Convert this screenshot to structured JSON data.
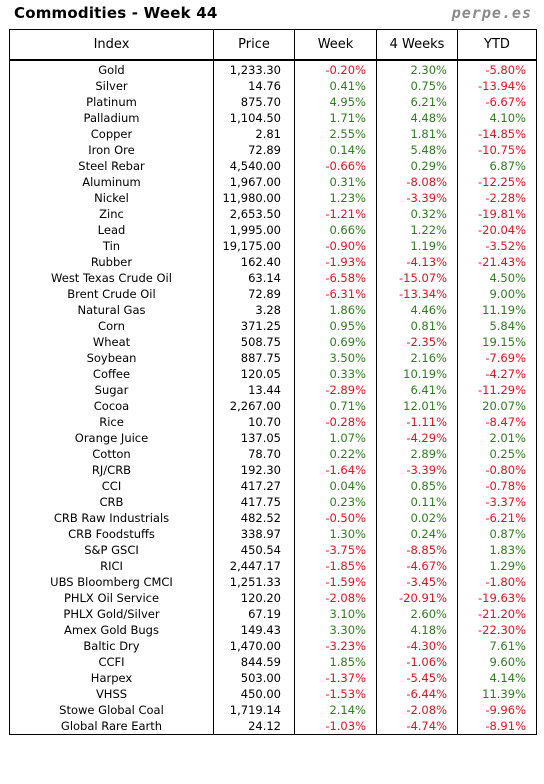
{
  "header": {
    "title": "Commodities - Week 44",
    "brand": "perpe.es"
  },
  "columns": [
    "Index",
    "Price",
    "Week",
    "4 Weeks",
    "YTD"
  ],
  "colors": {
    "positive": "#2e7d1e",
    "negative": "#e0141e"
  },
  "rows": [
    {
      "index": "Gold",
      "price": "1,233.30",
      "week": "-0.20%",
      "four_weeks": "2.30%",
      "ytd": "-5.80%"
    },
    {
      "index": "Silver",
      "price": "14.76",
      "week": "0.41%",
      "four_weeks": "0.75%",
      "ytd": "-13.94%"
    },
    {
      "index": "Platinum",
      "price": "875.70",
      "week": "4.95%",
      "four_weeks": "6.21%",
      "ytd": "-6.67%"
    },
    {
      "index": "Palladium",
      "price": "1,104.50",
      "week": "1.71%",
      "four_weeks": "4.48%",
      "ytd": "4.10%"
    },
    {
      "index": "Copper",
      "price": "2.81",
      "week": "2.55%",
      "four_weeks": "1.81%",
      "ytd": "-14.85%"
    },
    {
      "index": "Iron Ore",
      "price": "72.89",
      "week": "0.14%",
      "four_weeks": "5.48%",
      "ytd": "-10.75%"
    },
    {
      "index": "Steel Rebar",
      "price": "4,540.00",
      "week": "-0.66%",
      "four_weeks": "0.29%",
      "ytd": "6.87%"
    },
    {
      "index": "Aluminum",
      "price": "1,967.00",
      "week": "0.31%",
      "four_weeks": "-8.08%",
      "ytd": "-12.25%"
    },
    {
      "index": "Nickel",
      "price": "11,980.00",
      "week": "1.23%",
      "four_weeks": "-3.39%",
      "ytd": "-2.28%"
    },
    {
      "index": "Zinc",
      "price": "2,653.50",
      "week": "-1.21%",
      "four_weeks": "0.32%",
      "ytd": "-19.81%"
    },
    {
      "index": "Lead",
      "price": "1,995.00",
      "week": "0.66%",
      "four_weeks": "1.22%",
      "ytd": "-20.04%"
    },
    {
      "index": "Tin",
      "price": "19,175.00",
      "week": "-0.90%",
      "four_weeks": "1.19%",
      "ytd": "-3.52%"
    },
    {
      "index": "Rubber",
      "price": "162.40",
      "week": "-1.93%",
      "four_weeks": "-4.13%",
      "ytd": "-21.43%"
    },
    {
      "index": "West Texas Crude Oil",
      "price": "63.14",
      "week": "-6.58%",
      "four_weeks": "-15.07%",
      "ytd": "4.50%"
    },
    {
      "index": "Brent Crude Oil",
      "price": "72.89",
      "week": "-6.31%",
      "four_weeks": "-13.34%",
      "ytd": "9.00%"
    },
    {
      "index": "Natural Gas",
      "price": "3.28",
      "week": "1.86%",
      "four_weeks": "4.46%",
      "ytd": "11.19%"
    },
    {
      "index": "Corn",
      "price": "371.25",
      "week": "0.95%",
      "four_weeks": "0.81%",
      "ytd": "5.84%"
    },
    {
      "index": "Wheat",
      "price": "508.75",
      "week": "0.69%",
      "four_weeks": "-2.35%",
      "ytd": "19.15%"
    },
    {
      "index": "Soybean",
      "price": "887.75",
      "week": "3.50%",
      "four_weeks": "2.16%",
      "ytd": "-7.69%"
    },
    {
      "index": "Coffee",
      "price": "120.05",
      "week": "0.33%",
      "four_weeks": "10.19%",
      "ytd": "-4.27%"
    },
    {
      "index": "Sugar",
      "price": "13.44",
      "week": "-2.89%",
      "four_weeks": "6.41%",
      "ytd": "-11.29%"
    },
    {
      "index": "Cocoa",
      "price": "2,267.00",
      "week": "0.71%",
      "four_weeks": "12.01%",
      "ytd": "20.07%"
    },
    {
      "index": "Rice",
      "price": "10.70",
      "week": "-0.28%",
      "four_weeks": "-1.11%",
      "ytd": "-8.47%"
    },
    {
      "index": "Orange Juice",
      "price": "137.05",
      "week": "1.07%",
      "four_weeks": "-4.29%",
      "ytd": "2.01%"
    },
    {
      "index": "Cotton",
      "price": "78.70",
      "week": "0.22%",
      "four_weeks": "2.89%",
      "ytd": "0.25%"
    },
    {
      "index": "RJ/CRB",
      "price": "192.30",
      "week": "-1.64%",
      "four_weeks": "-3.39%",
      "ytd": "-0.80%"
    },
    {
      "index": "CCI",
      "price": "417.27",
      "week": "0.04%",
      "four_weeks": "0.85%",
      "ytd": "-0.78%"
    },
    {
      "index": "CRB",
      "price": "417.75",
      "week": "0.23%",
      "four_weeks": "0.11%",
      "ytd": "-3.37%"
    },
    {
      "index": "CRB Raw Industrials",
      "price": "482.52",
      "week": "-0.50%",
      "four_weeks": "0.02%",
      "ytd": "-6.21%"
    },
    {
      "index": "CRB Foodstuffs",
      "price": "338.97",
      "week": "1.30%",
      "four_weeks": "0.24%",
      "ytd": "0.87%"
    },
    {
      "index": "S&P GSCI",
      "price": "450.54",
      "week": "-3.75%",
      "four_weeks": "-8.85%",
      "ytd": "1.83%"
    },
    {
      "index": "RICI",
      "price": "2,447.17",
      "week": "-1.85%",
      "four_weeks": "-4.67%",
      "ytd": "1.29%"
    },
    {
      "index": "UBS Bloomberg CMCI",
      "price": "1,251.33",
      "week": "-1.59%",
      "four_weeks": "-3.45%",
      "ytd": "-1.80%"
    },
    {
      "index": "PHLX Oil Service",
      "price": "120.20",
      "week": "-2.08%",
      "four_weeks": "-20.91%",
      "ytd": "-19.63%"
    },
    {
      "index": "PHLX Gold/Silver",
      "price": "67.19",
      "week": "3.10%",
      "four_weeks": "2.60%",
      "ytd": "-21.20%"
    },
    {
      "index": "Amex Gold Bugs",
      "price": "149.43",
      "week": "3.30%",
      "four_weeks": "4.18%",
      "ytd": "-22.30%"
    },
    {
      "index": "Baltic Dry",
      "price": "1,470.00",
      "week": "-3.23%",
      "four_weeks": "-4.30%",
      "ytd": "7.61%"
    },
    {
      "index": "CCFI",
      "price": "844.59",
      "week": "1.85%",
      "four_weeks": "-1.06%",
      "ytd": "9.60%"
    },
    {
      "index": "Harpex",
      "price": "503.00",
      "week": "-1.37%",
      "four_weeks": "-5.45%",
      "ytd": "4.14%"
    },
    {
      "index": "VHSS",
      "price": "450.00",
      "week": "-1.53%",
      "four_weeks": "-6.44%",
      "ytd": "11.39%"
    },
    {
      "index": "Stowe Global Coal",
      "price": "1,719.14",
      "week": "2.14%",
      "four_weeks": "-2.08%",
      "ytd": "-9.96%"
    },
    {
      "index": "Global Rare Earth",
      "price": "24.12",
      "week": "-1.03%",
      "four_weeks": "-4.74%",
      "ytd": "-8.91%"
    }
  ]
}
